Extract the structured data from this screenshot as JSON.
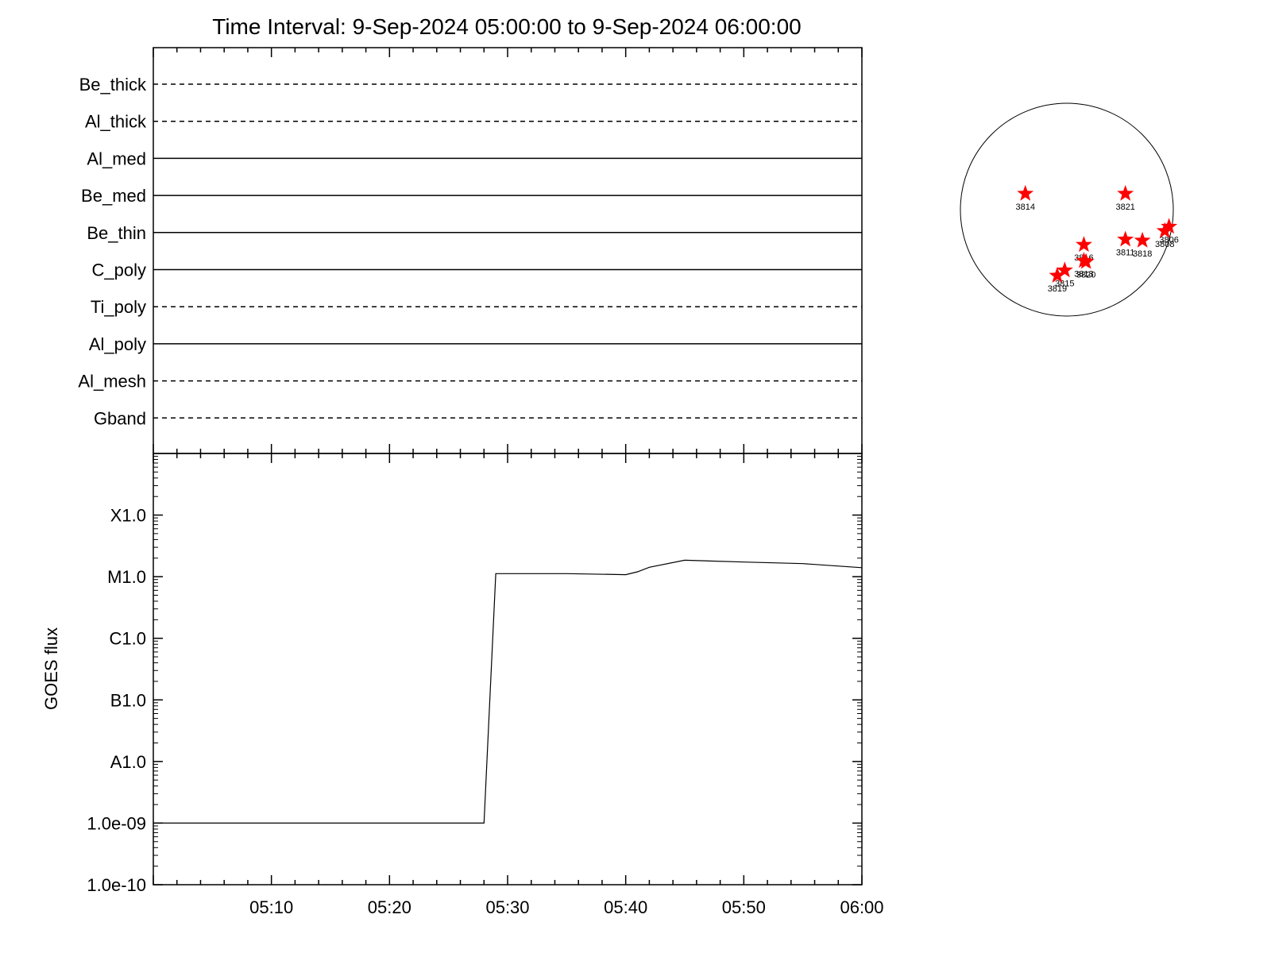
{
  "title": "Time Interval:  9-Sep-2024 05:00:00 to  9-Sep-2024 06:00:00",
  "colors": {
    "axis": "#000000",
    "line": "#000000",
    "star": "#ff0000"
  },
  "chart_data": [
    {
      "type": "line",
      "panel": "filter-status",
      "rows": [
        {
          "label": "Be_thick",
          "style": "dashed"
        },
        {
          "label": "Al_thick",
          "style": "dashed"
        },
        {
          "label": "Al_med",
          "style": "solid"
        },
        {
          "label": "Be_med",
          "style": "solid"
        },
        {
          "label": "Be_thin",
          "style": "solid"
        },
        {
          "label": "C_poly",
          "style": "solid"
        },
        {
          "label": "Ti_poly",
          "style": "dashed"
        },
        {
          "label": "Al_poly",
          "style": "solid"
        },
        {
          "label": "Al_mesh",
          "style": "dashed"
        },
        {
          "label": "Gband",
          "style": "dashed"
        }
      ],
      "xlim": [
        "05:00",
        "06:00"
      ]
    },
    {
      "type": "line",
      "panel": "goes-flux",
      "ylabel": "GOES flux",
      "yscale": "log",
      "ylim": [
        1e-10,
        0.001
      ],
      "yticks": [
        {
          "value": 1e-10,
          "label": "1.0e-10"
        },
        {
          "value": 1e-09,
          "label": "1.0e-09"
        },
        {
          "value": 1e-08,
          "label": "A1.0"
        },
        {
          "value": 1e-07,
          "label": "B1.0"
        },
        {
          "value": 1e-06,
          "label": "C1.0"
        },
        {
          "value": 1e-05,
          "label": "M1.0"
        },
        {
          "value": 0.0001,
          "label": "X1.0"
        }
      ],
      "xlim": [
        "05:00",
        "06:00"
      ],
      "xticks": [
        "05:10",
        "05:20",
        "05:30",
        "05:40",
        "05:50",
        "06:00"
      ],
      "series": [
        {
          "x": [
            "05:00",
            "05:28",
            "05:29",
            "05:35",
            "05:40",
            "05:41",
            "05:42",
            "05:45",
            "05:50",
            "05:55",
            "06:00"
          ],
          "y": [
            1e-09,
            1e-09,
            1.12e-05,
            1.12e-05,
            1.08e-05,
            1.2e-05,
            1.42e-05,
            1.85e-05,
            1.73e-05,
            1.63e-05,
            1.4e-05
          ]
        }
      ]
    },
    {
      "type": "scatter",
      "panel": "solar-disk",
      "points": [
        {
          "label": "3814",
          "x": -0.39,
          "y": 0.15
        },
        {
          "label": "3821",
          "x": 0.55,
          "y": 0.15
        },
        {
          "label": "3816",
          "x": 0.16,
          "y": -0.33
        },
        {
          "label": "3813",
          "x": 0.16,
          "y": -0.48
        },
        {
          "label": "3820",
          "x": 0.18,
          "y": -0.49
        },
        {
          "label": "3815",
          "x": -0.02,
          "y": -0.57
        },
        {
          "label": "3819",
          "x": -0.09,
          "y": -0.62
        },
        {
          "label": "3811",
          "x": 0.55,
          "y": -0.28
        },
        {
          "label": "3818",
          "x": 0.71,
          "y": -0.29
        },
        {
          "label": "3806",
          "x": 0.96,
          "y": -0.16
        },
        {
          "label": "3808",
          "x": 0.92,
          "y": -0.2
        }
      ]
    }
  ]
}
